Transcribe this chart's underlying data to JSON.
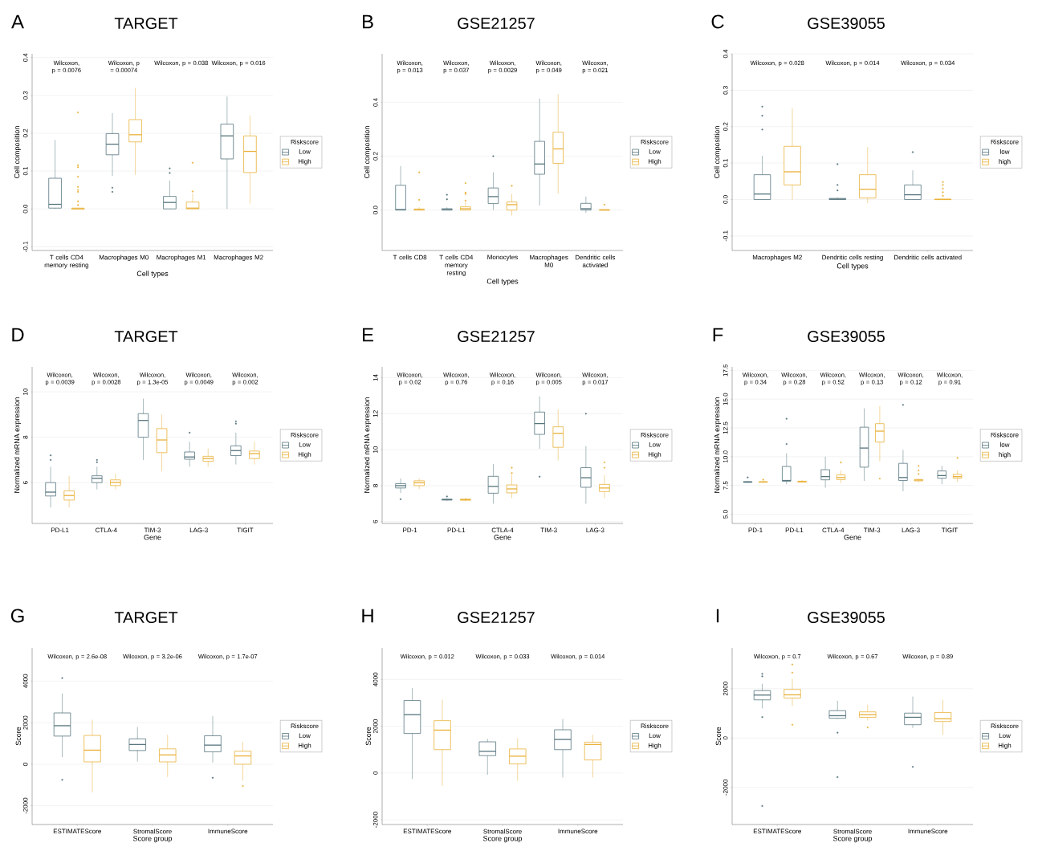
{
  "chart_data": [
    {
      "type": "box",
      "title": "TARGET",
      "annotations": [
        "A",
        "Wilcoxon, p = 0.0076",
        "Wilcoxon, p = 0.00074",
        "Wilcoxon, p = 0.038",
        "Wilcoxon, p = 0.016"
      ],
      "categories": [
        "T cells CD4 memory resting",
        "Macrophages M0",
        "Macrophages M1",
        "Macrophages M2"
      ],
      "xlabel": "Cell types",
      "ylabel": "Cell composition",
      "ylim": [
        -0.11,
        0.41
      ],
      "yticks": [
        {
          "value": -0.1,
          "label": "-0.1"
        },
        {
          "value": 0,
          "label": "0.0"
        },
        0.1,
        0.2,
        0.3,
        0.4
      ],
      "grid": "y",
      "legend": "right",
      "legend_title": "Riskscore",
      "series": [
        {
          "name": "Low",
          "color": "#56757d",
          "boxes": [
            {
              "low": 0,
              "q1": 0.002,
              "median": 0.012,
              "q3": 0.081,
              "high": 0.182
            },
            {
              "low": 0.087,
              "q1": 0.143,
              "median": 0.171,
              "q3": 0.199,
              "high": 0.253,
              "outliers": [
                0.056,
                0.045
              ]
            },
            {
              "low": 0,
              "q1": 0.0,
              "median": 0.017,
              "q3": 0.033,
              "high": 0.075,
              "outliers": [
                0.107,
                0.095
              ]
            },
            {
              "low": 0.0,
              "q1": 0.132,
              "median": 0.193,
              "q3": 0.224,
              "high": 0.297
            }
          ]
        },
        {
          "name": "High",
          "color": "#e9b13a",
          "boxes": [
            {
              "low": 0,
              "q1": 0,
              "median": 0,
              "q3": 0.002,
              "high": 0.002,
              "outliers": [
                0.255,
                0.115,
                0.11,
                0.085,
                0.058,
                0.05,
                0.045,
                0.02,
                0.01
              ]
            },
            {
              "low": 0.09,
              "q1": 0.177,
              "median": 0.196,
              "q3": 0.236,
              "high": 0.32
            },
            {
              "low": 0,
              "q1": 0,
              "median": 0.002,
              "q3": 0.018,
              "high": 0.04,
              "outliers": [
                0.122,
                0.046
              ]
            },
            {
              "low": 0.014,
              "q1": 0.096,
              "median": 0.152,
              "q3": 0.193,
              "high": 0.247
            }
          ]
        }
      ]
    },
    {
      "type": "box",
      "title": "GSE21257",
      "annotations": [
        "B",
        "Wilcoxon, p = 0.013",
        "Wilcoxon, p = 0.037",
        "Wilcoxon, p = 0.0029",
        "Wilcoxon, p = 0.049",
        "Wilcoxon, p = 0.021"
      ],
      "categories": [
        "T cells CD8",
        "T cells CD4 memory resting",
        "Monocytes",
        "Macrophages M0",
        "Dendritic cells activated"
      ],
      "xlabel": "Cell types",
      "ylabel": "Cell composition",
      "ylim": [
        -0.15,
        0.58
      ],
      "yticks": [
        {
          "value": 0,
          "label": "0.0"
        },
        0.2,
        0.4
      ],
      "grid": "y",
      "legend": "right",
      "legend_title": "Riskscore",
      "series": [
        {
          "name": "Low",
          "color": "#56757d",
          "boxes": [
            {
              "low": 0,
              "q1": 0,
              "median": 0.002,
              "q3": 0.092,
              "high": 0.163
            },
            {
              "low": 0,
              "q1": 0,
              "median": 0.002,
              "q3": 0.005,
              "high": 0.01,
              "outliers": [
                0.057,
                0.04
              ]
            },
            {
              "low": 0,
              "q1": 0.024,
              "median": 0.05,
              "q3": 0.082,
              "high": 0.14,
              "outliers": [
                0.2
              ]
            },
            {
              "low": 0.017,
              "q1": 0.133,
              "median": 0.171,
              "q3": 0.255,
              "high": 0.414
            },
            {
              "low": -0.01,
              "q1": 0,
              "median": 0.005,
              "q3": 0.025,
              "high": 0.05
            }
          ]
        },
        {
          "name": "High",
          "color": "#e9b13a",
          "boxes": [
            {
              "low": 0,
              "q1": 0,
              "median": 0.001,
              "q3": 0.004,
              "high": 0.01,
              "outliers": [
                0.14,
                0.038
              ]
            },
            {
              "low": 0,
              "q1": 0,
              "median": 0.005,
              "q3": 0.012,
              "high": 0.03,
              "outliers": [
                0.1,
                0.065,
                0.06,
                0.035
              ]
            },
            {
              "low": -0.02,
              "q1": 0,
              "median": 0.02,
              "q3": 0.03,
              "high": 0.06,
              "outliers": [
                0.09
              ]
            },
            {
              "low": 0.061,
              "q1": 0.173,
              "median": 0.227,
              "q3": 0.289,
              "high": 0.43
            },
            {
              "low": 0,
              "q1": 0,
              "median": 0,
              "q3": 0.002,
              "high": 0.003,
              "outliers": [
                0.02
              ]
            }
          ]
        }
      ]
    },
    {
      "type": "box",
      "title": "GSE39055",
      "annotations": [
        "C",
        "Wilcoxon, p = 0.028",
        "Wilcoxon, p = 0.014",
        "Wilcoxon, p = 0.034"
      ],
      "categories": [
        "Macrophages M2",
        "Dendritic cells resting",
        "Dendritic cells activated"
      ],
      "xlabel": "Cell types",
      "ylabel": "Cell composition",
      "ylim": [
        -0.14,
        0.4
      ],
      "yticks": [
        {
          "value": -0.1,
          "label": "-0.1"
        },
        {
          "value": 0,
          "label": "0.0"
        },
        0.1,
        0.2,
        0.3,
        0.4
      ],
      "grid": "y",
      "legend": "right",
      "legend_title": "Riskscore",
      "series": [
        {
          "name": "low",
          "color": "#56757d",
          "boxes": [
            {
              "low": 0,
              "q1": 0,
              "median": 0.015,
              "q3": 0.068,
              "high": 0.12,
              "outliers": [
                0.255,
                0.23,
                0.192
              ]
            },
            {
              "low": 0,
              "q1": 0,
              "median": 0.001,
              "q3": 0.003,
              "high": 0.006,
              "outliers": [
                0.097,
                0.04,
                0.025
              ]
            },
            {
              "low": 0,
              "q1": 0,
              "median": 0.013,
              "q3": 0.04,
              "high": 0.08,
              "outliers": [
                0.13
              ]
            }
          ]
        },
        {
          "name": "high",
          "color": "#e9b13a",
          "boxes": [
            {
              "low": 0,
              "q1": 0.04,
              "median": 0.076,
              "q3": 0.146,
              "high": 0.25
            },
            {
              "low": -0.01,
              "q1": 0.004,
              "median": 0.028,
              "q3": 0.068,
              "high": 0.144
            },
            {
              "low": 0,
              "q1": 0,
              "median": 0,
              "q3": 0.001,
              "high": 0.002,
              "outliers": [
                0.048,
                0.04,
                0.03,
                0.02,
                0.01
              ]
            }
          ]
        }
      ]
    },
    {
      "type": "box",
      "title": "TARGET",
      "annotations": [
        "D",
        "Wilcoxon, p = 0.0039",
        "Wilcoxon, p = 0.0028",
        "Wilcoxon, p = 1.3e-05",
        "Wilcoxon, p = 0.0049",
        "Wilcoxon, p = 0.002"
      ],
      "categories": [
        "PD-L1",
        "CTLA-4",
        "TIM-3",
        "LAG-3",
        "TIGIT"
      ],
      "xlabel": "Gene",
      "ylabel": "Normalized mRNA expression",
      "ylim": [
        4.2,
        11.1
      ],
      "yticks": [
        6,
        8,
        10
      ],
      "grid": "y",
      "legend": "right",
      "legend_title": "Riskscore",
      "series": [
        {
          "name": "Low",
          "color": "#56757d",
          "boxes": [
            {
              "low": 4.9,
              "q1": 5.41,
              "median": 5.58,
              "q3": 6.0,
              "high": 6.7,
              "outliers": [
                7.2,
                7.0
              ]
            },
            {
              "low": 5.7,
              "q1": 6.0,
              "median": 6.19,
              "q3": 6.3,
              "high": 6.7,
              "outliers": [
                7.0,
                6.9
              ]
            },
            {
              "low": 7.0,
              "q1": 8.0,
              "median": 8.74,
              "q3": 9.04,
              "high": 9.7
            },
            {
              "low": 6.7,
              "q1": 7.03,
              "median": 7.13,
              "q3": 7.35,
              "high": 7.8,
              "outliers": [
                8.2
              ]
            },
            {
              "low": 6.8,
              "q1": 7.19,
              "median": 7.41,
              "q3": 7.62,
              "high": 8.2,
              "outliers": [
                8.7,
                8.6
              ]
            }
          ]
        },
        {
          "name": "High",
          "color": "#e9b13a",
          "boxes": [
            {
              "low": 4.9,
              "q1": 5.23,
              "median": 5.43,
              "q3": 5.64,
              "high": 6.3
            },
            {
              "low": 5.7,
              "q1": 5.87,
              "median": 6.01,
              "q3": 6.12,
              "high": 6.4
            },
            {
              "low": 6.5,
              "q1": 7.32,
              "median": 7.88,
              "q3": 8.38,
              "high": 9.0
            },
            {
              "low": 6.7,
              "q1": 6.94,
              "median": 7.06,
              "q3": 7.16,
              "high": 7.5
            },
            {
              "low": 6.8,
              "q1": 7.06,
              "median": 7.28,
              "q3": 7.39,
              "high": 7.8
            }
          ]
        }
      ]
    },
    {
      "type": "box",
      "title": "GSE21257",
      "annotations": [
        "E",
        "Wilcoxon, p = 0.02",
        "Wilcoxon, p = 0.76",
        "Wilcoxon, p = 0.16",
        "Wilcoxon, p = 0.005",
        "Wilcoxon, p = 0.017"
      ],
      "categories": [
        "PD-1",
        "PD-L1",
        "CTLA-4",
        "TIM-3",
        "LAG-3"
      ],
      "xlabel": "Gene",
      "ylabel": "Normalized mRNA expression",
      "ylim": [
        5.9,
        14.6
      ],
      "yticks": [
        6,
        8,
        10,
        12,
        14
      ],
      "grid": "y",
      "legend": "right",
      "legend_title": "Riskscore",
      "series": [
        {
          "name": "Low",
          "color": "#56757d",
          "boxes": [
            {
              "low": 7.6,
              "q1": 7.87,
              "median": 8.0,
              "q3": 8.11,
              "high": 8.4,
              "outliers": [
                7.25
              ]
            },
            {
              "low": 7.17,
              "q1": 7.2,
              "median": 7.22,
              "q3": 7.25,
              "high": 7.3,
              "outliers": [
                7.4
              ]
            },
            {
              "low": 7.0,
              "q1": 7.58,
              "median": 7.96,
              "q3": 8.52,
              "high": 9.2
            },
            {
              "low": 10.05,
              "q1": 10.85,
              "median": 11.45,
              "q3": 12.09,
              "high": 12.96,
              "outliers": [
                8.5
              ]
            },
            {
              "low": 7.0,
              "q1": 7.91,
              "median": 8.44,
              "q3": 9.0,
              "high": 10.2,
              "outliers": [
                12.0
              ]
            }
          ]
        },
        {
          "name": "High",
          "color": "#e9b13a",
          "boxes": [
            {
              "low": 7.8,
              "q1": 8.0,
              "median": 8.16,
              "q3": 8.27,
              "high": 8.4
            },
            {
              "low": 7.13,
              "q1": 7.19,
              "median": 7.22,
              "q3": 7.25,
              "high": 7.32
            },
            {
              "low": 7.3,
              "q1": 7.6,
              "median": 7.82,
              "q3": 8.04,
              "high": 8.6,
              "outliers": [
                9.0,
                8.7
              ]
            },
            {
              "low": 9.4,
              "q1": 10.13,
              "median": 10.91,
              "q3": 11.27,
              "high": 12.24
            },
            {
              "low": 7.3,
              "q1": 7.67,
              "median": 7.87,
              "q3": 8.07,
              "high": 8.6,
              "outliers": [
                9.3,
                9.0
              ]
            }
          ]
        }
      ]
    },
    {
      "type": "box",
      "title": "GSE39055",
      "annotations": [
        "F",
        "Wilcoxon, p = 0.34",
        "Wilcoxon, p = 0.28",
        "Wilcoxon, p = 0.52",
        "Wilcoxon, p = 0.13",
        "Wilcoxon, p = 0.12",
        "Wilcoxon, p = 0.91"
      ],
      "categories": [
        "PD-1",
        "PD-L1",
        "CTLA-4",
        "TIM-3",
        "LAG-3",
        "TIGIT"
      ],
      "xlabel": "Gene",
      "ylabel": "Normalized mRNA expression",
      "ylim": [
        4.2,
        17.8
      ],
      "yticks": [
        {
          "value": 5,
          "label": "5.0"
        },
        7.5,
        {
          "value": 10,
          "label": "10.0"
        },
        12.5,
        {
          "value": 15,
          "label": "15.0"
        },
        17.5
      ],
      "grid": "y",
      "legend": "right",
      "legend_title": "Riskscore",
      "series": [
        {
          "name": "low",
          "color": "#56757d",
          "boxes": [
            {
              "low": 7.75,
              "q1": 7.77,
              "median": 7.8,
              "q3": 7.83,
              "high": 7.9,
              "outliers": [
                8.2
              ]
            },
            {
              "low": 7.6,
              "q1": 7.87,
              "median": 7.93,
              "q3": 9.15,
              "high": 10.3,
              "outliers": [
                13.3,
                11.1
              ]
            },
            {
              "low": 7.3,
              "q1": 7.99,
              "median": 8.27,
              "q3": 8.87,
              "high": 10.0
            },
            {
              "low": 7.9,
              "q1": 9.09,
              "median": 10.75,
              "q3": 12.56,
              "high": 14.2
            },
            {
              "low": 7.0,
              "q1": 7.93,
              "median": 8.19,
              "q3": 9.42,
              "high": 10.6,
              "outliers": [
                14.5
              ]
            },
            {
              "low": 7.6,
              "q1": 8.13,
              "median": 8.36,
              "q3": 8.76,
              "high": 9.2
            }
          ]
        },
        {
          "name": "high",
          "color": "#e9b13a",
          "boxes": [
            {
              "low": 7.75,
              "q1": 7.78,
              "median": 7.8,
              "q3": 7.83,
              "high": 7.9,
              "outliers": [
                8.0
              ]
            },
            {
              "low": 7.75,
              "q1": 7.8,
              "median": 7.83,
              "q3": 7.87,
              "high": 7.95
            },
            {
              "low": 7.7,
              "q1": 8.01,
              "median": 8.19,
              "q3": 8.42,
              "high": 8.8,
              "outliers": [
                9.5
              ]
            },
            {
              "low": 9.6,
              "q1": 11.27,
              "median": 12.22,
              "q3": 12.87,
              "high": 14.4,
              "outliers": [
                8.1
              ]
            },
            {
              "low": 7.8,
              "q1": 7.9,
              "median": 7.97,
              "q3": 8.02,
              "high": 8.1,
              "outliers": [
                9.2,
                8.8,
                8.5
              ]
            },
            {
              "low": 7.8,
              "q1": 8.13,
              "median": 8.27,
              "q3": 8.47,
              "high": 8.8,
              "outliers": [
                9.9
              ]
            }
          ]
        }
      ]
    },
    {
      "type": "box",
      "title": "TARGET",
      "annotations": [
        "G",
        "Wilcoxon, p = 2.6e-08",
        "Wilcoxon, p = 3.2e-06",
        "Wilcoxon, p = 1.7e-07"
      ],
      "categories": [
        "ESTIMATEScore",
        "StromalScore",
        "ImmuneScore"
      ],
      "xlabel": "Score group",
      "ylabel": "Score",
      "ylim": [
        -2900,
        5600
      ],
      "yticks": [
        -2000,
        0,
        2000,
        4000
      ],
      "grid": "y",
      "legend": "right",
      "legend_title": "Riskscore",
      "series": [
        {
          "name": "Low",
          "color": "#56757d",
          "boxes": [
            {
              "low": 340,
              "q1": 1355,
              "median": 1855,
              "q3": 2470,
              "high": 3400,
              "outliers": [
                4150,
                -750
              ]
            },
            {
              "low": 130,
              "q1": 660,
              "median": 950,
              "q3": 1225,
              "high": 1790
            },
            {
              "low": 80,
              "q1": 600,
              "median": 920,
              "q3": 1370,
              "high": 2320,
              "outliers": [
                -650
              ]
            }
          ]
        },
        {
          "name": "High",
          "color": "#e9b13a",
          "boxes": [
            {
              "low": -1355,
              "q1": 113,
              "median": 677,
              "q3": 1387,
              "high": 2145
            },
            {
              "low": -613,
              "q1": 113,
              "median": 450,
              "q3": 740,
              "high": 1420
            },
            {
              "low": -790,
              "q1": 0,
              "median": 400,
              "q3": 630,
              "high": 1080,
              "outliers": [
                -1050
              ]
            }
          ]
        }
      ]
    },
    {
      "type": "box",
      "title": "GSE21257",
      "annotations": [
        "H",
        "Wilcoxon, p = 0.012",
        "Wilcoxon, p = 0.033",
        "Wilcoxon, p = 0.014"
      ],
      "categories": [
        "ESTIMATEScore",
        "StromalScore",
        "ImmuneScore"
      ],
      "xlabel": "Score group",
      "ylabel": "Score",
      "ylim": [
        -2200,
        5350
      ],
      "yticks": [
        -2000,
        0,
        2000,
        4000
      ],
      "grid": "y",
      "legend": "right",
      "legend_title": "Riskscore",
      "series": [
        {
          "name": "Low",
          "color": "#56757d",
          "boxes": [
            {
              "low": -260,
              "q1": 1690,
              "median": 2495,
              "q3": 3100,
              "high": 3640
            },
            {
              "low": -70,
              "q1": 745,
              "median": 930,
              "q3": 1335,
              "high": 1460
            },
            {
              "low": -190,
              "q1": 1000,
              "median": 1435,
              "q3": 1850,
              "high": 2310
            }
          ]
        },
        {
          "name": "High",
          "color": "#e9b13a",
          "boxes": [
            {
              "low": -545,
              "q1": 1000,
              "median": 1835,
              "q3": 2240,
              "high": 3140
            },
            {
              "low": -330,
              "q1": 390,
              "median": 720,
              "q3": 1030,
              "high": 1490
            },
            {
              "low": -190,
              "q1": 560,
              "median": 1220,
              "q3": 1320,
              "high": 1635
            }
          ]
        }
      ]
    },
    {
      "type": "box",
      "title": "GSE39055",
      "annotations": [
        "I",
        "Wilcoxon, p = 0.7",
        "Wilcoxon, p = 0.67",
        "Wilcoxon, p = 0.89"
      ],
      "categories": [
        "ESTIMATEScore",
        "StromalScore",
        "ImmuneScore"
      ],
      "xlabel": "Score group",
      "ylabel": "Score",
      "ylim": [
        -3500,
        3650
      ],
      "yticks": [
        -2000,
        0,
        2000
      ],
      "grid": "y",
      "legend": "right",
      "legend_title": "Riskscore",
      "series": [
        {
          "name": "Low",
          "color": "#56757d",
          "boxes": [
            {
              "low": 1200,
              "q1": 1545,
              "median": 1740,
              "q3": 1920,
              "high": 2200,
              "outliers": [
                2600,
                2500,
                850,
                -2750
              ]
            },
            {
              "low": 775,
              "q1": 800,
              "median": 905,
              "q3": 1110,
              "high": 1510,
              "outliers": [
                220,
                -1580
              ]
            },
            {
              "low": 410,
              "q1": 540,
              "median": 840,
              "q3": 1010,
              "high": 1680,
              "outliers": [
                -1165
              ]
            }
          ]
        },
        {
          "name": "High",
          "color": "#e9b13a",
          "boxes": [
            {
              "low": 1300,
              "q1": 1620,
              "median": 1750,
              "q3": 1970,
              "high": 2400,
              "outliers": [
                2980,
                2650,
                540
              ]
            },
            {
              "low": 710,
              "q1": 840,
              "median": 945,
              "q3": 1060,
              "high": 1360,
              "outliers": [
                430
              ]
            },
            {
              "low": 130,
              "q1": 670,
              "median": 780,
              "q3": 1035,
              "high": 1550
            }
          ]
        }
      ]
    }
  ]
}
